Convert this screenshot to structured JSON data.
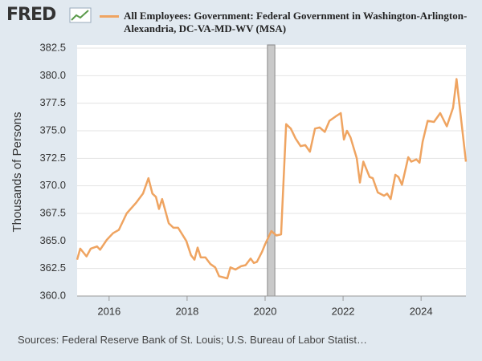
{
  "logo": "FRED",
  "source": "Sources: Federal Reserve Bank of St. Louis; U.S. Bureau of Labor Statist…",
  "chart_data": {
    "type": "line",
    "y_label": "Thousands of Persons",
    "x": [
      2015.18,
      2015.26,
      2015.42,
      2015.53,
      2015.69,
      2015.77,
      2015.94,
      2016.1,
      2016.25,
      2016.45,
      2016.7,
      2016.87,
      2017.01,
      2017.11,
      2017.2,
      2017.28,
      2017.36,
      2017.53,
      2017.65,
      2017.77,
      2017.98,
      2018.1,
      2018.19,
      2018.27,
      2018.35,
      2018.47,
      2018.6,
      2018.72,
      2018.82,
      2019.03,
      2019.11,
      2019.24,
      2019.38,
      2019.5,
      2019.63,
      2019.71,
      2019.79,
      2019.92,
      2020.0,
      2020.16,
      2020.29,
      2020.41,
      2020.54,
      2020.66,
      2020.78,
      2020.91,
      2021.03,
      2021.15,
      2021.28,
      2021.4,
      2021.53,
      2021.65,
      2021.81,
      2021.94,
      2022.02,
      2022.1,
      2022.19,
      2022.35,
      2022.43,
      2022.52,
      2022.68,
      2022.76,
      2022.89,
      2023.05,
      2023.13,
      2023.22,
      2023.34,
      2023.42,
      2023.51,
      2023.67,
      2023.75,
      2023.88,
      2023.96,
      2024.04,
      2024.17,
      2024.33,
      2024.49,
      2024.66,
      2024.82,
      2024.91,
      2025.07,
      2025.15
    ],
    "series": [
      {
        "name": "All Employees: Government: Federal Government in Washington-Arlington-Alexandria, DC-VA-MD-WV (MSA)",
        "color": "#efa461",
        "values": [
          363.3,
          364.3,
          363.6,
          364.3,
          364.5,
          364.2,
          365.1,
          365.7,
          366.0,
          367.5,
          368.5,
          369.3,
          370.7,
          369.3,
          369.0,
          367.9,
          368.8,
          366.6,
          366.2,
          366.2,
          365.0,
          363.7,
          363.3,
          364.4,
          363.5,
          363.5,
          362.9,
          362.6,
          361.8,
          361.6,
          362.6,
          362.4,
          362.7,
          362.8,
          363.4,
          363.0,
          363.1,
          364.0,
          364.7,
          365.9,
          365.5,
          365.6,
          375.6,
          375.2,
          374.3,
          373.6,
          373.7,
          373.1,
          375.2,
          375.3,
          374.9,
          375.9,
          376.3,
          376.6,
          374.2,
          375.0,
          374.4,
          372.5,
          370.3,
          372.2,
          370.8,
          370.7,
          369.4,
          369.1,
          369.3,
          368.8,
          371.0,
          370.8,
          370.1,
          372.6,
          372.2,
          372.4,
          372.1,
          374.0,
          375.9,
          375.8,
          376.6,
          375.4,
          377.1,
          379.7,
          374.7,
          372.2
        ]
      }
    ],
    "xlim": [
      2015.18,
      2025.15
    ],
    "xticks": [
      2016,
      2018,
      2020,
      2022,
      2024
    ],
    "ylim": [
      360,
      382.5
    ],
    "yticks": [
      {
        "value": 360,
        "label": "360.0"
      },
      362.5,
      {
        "value": 365,
        "label": "365.0"
      },
      367.5,
      {
        "value": 370,
        "label": "370.0"
      },
      372.5,
      {
        "value": 375,
        "label": "375.0"
      },
      377.5,
      {
        "value": 380,
        "label": "380.0"
      },
      382.5
    ],
    "recessions": [
      [
        2020.06,
        2020.25
      ]
    ],
    "grid": true
  }
}
